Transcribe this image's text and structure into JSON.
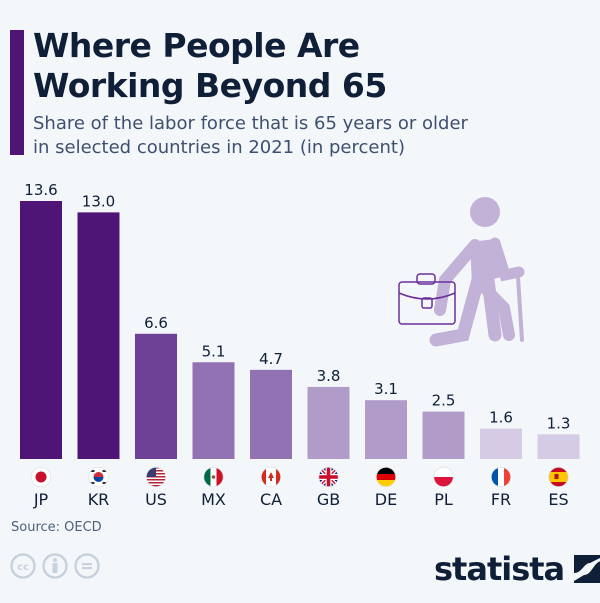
{
  "header": {
    "title_line1": "Where People Are",
    "title_line2": "Working Beyond 65",
    "subtitle_line1": "Share of the labor force that is 65 years or older",
    "subtitle_line2": "in selected countries in 2021 (in percent)"
  },
  "chart_data": {
    "type": "bar",
    "title": "Where People Are Working Beyond 65",
    "subtitle": "Share of the labor force that is 65 years or older in selected countries in 2021 (in percent)",
    "xlabel": "",
    "ylabel": "",
    "ylim": [
      0,
      13.6
    ],
    "grid": false,
    "categories": [
      "JP",
      "KR",
      "US",
      "MX",
      "CA",
      "GB",
      "DE",
      "PL",
      "FR",
      "ES"
    ],
    "values": [
      13.6,
      13.0,
      6.6,
      5.1,
      4.7,
      3.8,
      3.1,
      2.5,
      1.6,
      1.3
    ],
    "value_labels": [
      "13.6",
      "13.0",
      "6.6",
      "5.1",
      "4.7",
      "3.8",
      "3.1",
      "2.5",
      "1.6",
      "1.3"
    ],
    "bar_colors": [
      "#4e1476",
      "#4e1476",
      "#6e4196",
      "#9372b3",
      "#9372b3",
      "#b19cc9",
      "#b19cc9",
      "#b19cc9",
      "#d5cbe4",
      "#d5cbe4"
    ],
    "flags": [
      "japan-flag",
      "south-korea-flag",
      "usa-flag",
      "mexico-flag",
      "canada-flag",
      "uk-flag",
      "germany-flag",
      "poland-flag",
      "france-flag",
      "spain-flag"
    ]
  },
  "illustration": {
    "icon": "elderly-worker-with-briefcase-icon",
    "color": "#c2b2d8"
  },
  "footer": {
    "source": "Source: OECD",
    "license_icons": [
      "cc-icon",
      "attribution-icon",
      "no-derivatives-icon"
    ],
    "logo_text": "statista"
  },
  "colors": {
    "accent": "#4e1476",
    "text": "#0f1f38",
    "background": "#f4f7fa"
  }
}
